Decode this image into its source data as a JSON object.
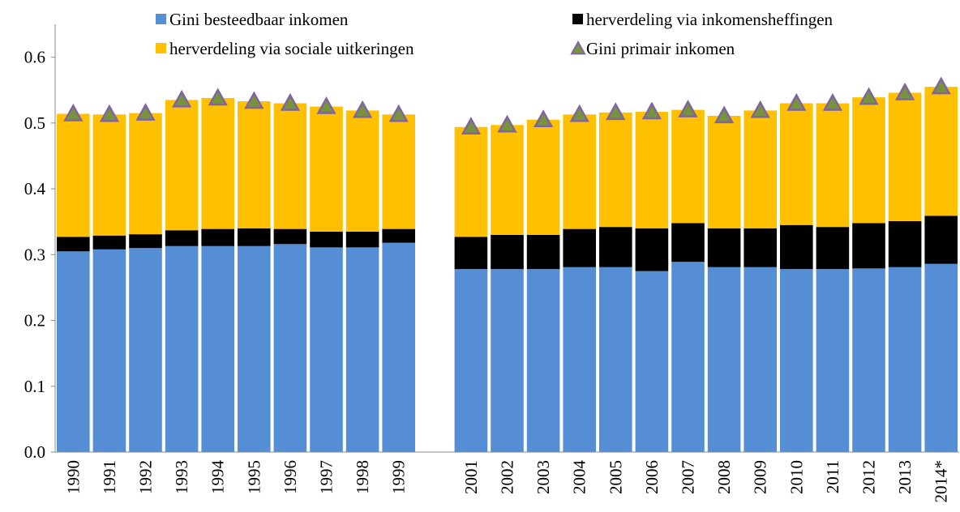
{
  "chart_data": {
    "type": "bar",
    "stacked": true,
    "categories": [
      "1990",
      "1991",
      "1992",
      "1993",
      "1994",
      "1995",
      "1996",
      "1997",
      "1998",
      "1999",
      null,
      "2001",
      "2002",
      "2003",
      "2004",
      "2005",
      "2006",
      "2007",
      "2008",
      "2009",
      "2010",
      "2011",
      "2012",
      "2013",
      "2014*"
    ],
    "series": [
      {
        "name": "Gini besteedbaar inkomen",
        "color": "#558ed5",
        "type": "bar",
        "values": [
          0.305,
          0.308,
          0.31,
          0.313,
          0.313,
          0.313,
          0.316,
          0.311,
          0.311,
          0.318,
          null,
          0.278,
          0.278,
          0.278,
          0.281,
          0.281,
          0.275,
          0.289,
          0.281,
          0.281,
          0.278,
          0.278,
          0.279,
          0.281,
          0.286
        ]
      },
      {
        "name": "herverdeling via inkomensheffingen",
        "color": "#000000",
        "type": "bar",
        "values": [
          0.022,
          0.021,
          0.021,
          0.024,
          0.026,
          0.027,
          0.023,
          0.024,
          0.024,
          0.021,
          null,
          0.049,
          0.052,
          0.052,
          0.058,
          0.061,
          0.065,
          0.059,
          0.059,
          0.059,
          0.067,
          0.064,
          0.069,
          0.07,
          0.073
        ]
      },
      {
        "name": "herverdeling via sociale uitkeringen",
        "color": "#ffc000",
        "type": "bar",
        "values": [
          0.187,
          0.184,
          0.184,
          0.198,
          0.199,
          0.193,
          0.191,
          0.19,
          0.184,
          0.174,
          null,
          0.167,
          0.167,
          0.175,
          0.174,
          0.174,
          0.177,
          0.172,
          0.171,
          0.179,
          0.185,
          0.188,
          0.191,
          0.195,
          0.196
        ]
      },
      {
        "name": "Gini primair inkomen",
        "color": "#77933c",
        "edgecolor": "#8064a2",
        "type": "scatter",
        "marker": "triangle",
        "values": [
          0.514,
          0.513,
          0.515,
          0.535,
          0.538,
          0.533,
          0.53,
          0.525,
          0.519,
          0.513,
          null,
          0.494,
          0.497,
          0.505,
          0.513,
          0.516,
          0.517,
          0.52,
          0.511,
          0.519,
          0.53,
          0.53,
          0.539,
          0.546,
          0.555
        ]
      }
    ],
    "ylim": [
      0,
      0.65
    ],
    "yticks": [
      {
        "value": 0,
        "label": "0.0"
      },
      0.1,
      0.2,
      0.3,
      0.4,
      0.5,
      0.6
    ],
    "grid": false,
    "legend": "top"
  }
}
